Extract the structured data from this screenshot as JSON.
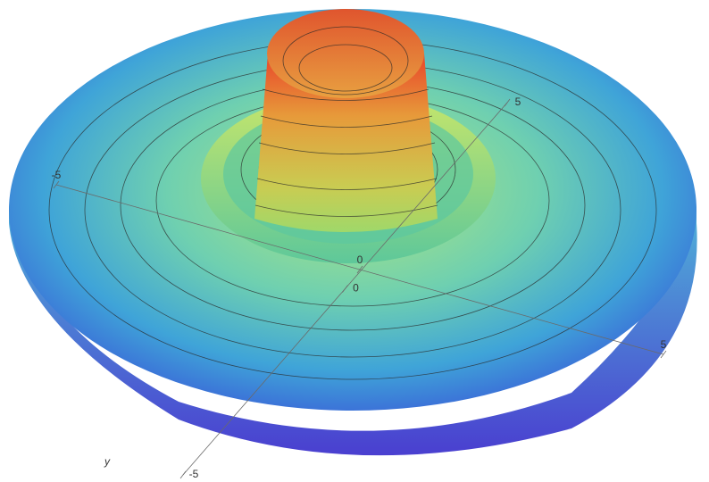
{
  "chart_data": {
    "type": "surface3d",
    "ylabel": "y",
    "xlim": [
      -5,
      5
    ],
    "xticks": [
      -5,
      0,
      5
    ],
    "ylim": [
      -5,
      5
    ],
    "yticks": [
      -5,
      0,
      5
    ]
  }
}
